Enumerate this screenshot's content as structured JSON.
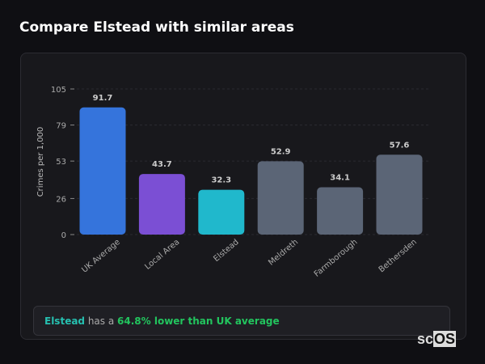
{
  "title": "Compare Elstead with similar areas",
  "chart_data": {
    "type": "bar",
    "categories": [
      "UK Average",
      "Local Area",
      "Elstead",
      "Meldreth",
      "Farmborough",
      "Bethersden"
    ],
    "values": [
      91.7,
      43.7,
      32.3,
      52.9,
      34.1,
      57.6
    ],
    "colors": [
      "#3574dc",
      "#7b4fd4",
      "#20b8cc",
      "#5b6576",
      "#5b6576",
      "#5b6576"
    ],
    "ylabel": "Crimes per 1,000",
    "yticks": [
      0,
      26,
      53,
      79,
      105
    ],
    "ylim": [
      0,
      105
    ],
    "grid": true
  },
  "footer": {
    "area": "Elstead",
    "middle": " has a ",
    "stat": "64.8% lower than UK average"
  },
  "logo": {
    "text_a": "sc",
    "text_b": "OS"
  }
}
